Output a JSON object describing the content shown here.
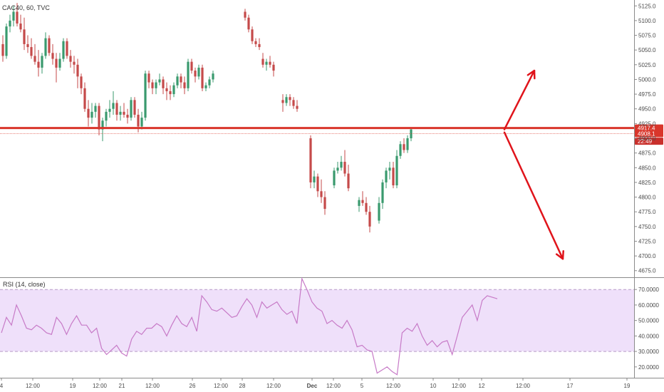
{
  "header": {
    "symbol_label": "CAC40, 60, TVC"
  },
  "rsi_panel": {
    "label": "RSI (14, close)"
  },
  "colors": {
    "up": "#3a9a6e",
    "down": "#c54a4a",
    "level_line": "#d9362b",
    "arrow": "#e0141b",
    "rsi_line": "#c77ac7",
    "rsi_band": "#efe0fa",
    "price_tag": "#d9362b",
    "time_tag": "#c9302c"
  },
  "chart_data": [
    {
      "type": "candlestick",
      "title": "CAC40, 60, TVC",
      "ylim": [
        4665,
        5135
      ],
      "y_ticks": [
        "4675.0",
        "4700.0",
        "4725.0",
        "4750.0",
        "4775.0",
        "4800.0",
        "4825.0",
        "4850.0",
        "4875.0",
        "4900.0",
        "4925.0",
        "4950.0",
        "4975.0",
        "5000.0",
        "5025.0",
        "5050.0",
        "5075.0",
        "5100.0",
        "5125.0"
      ],
      "x_ticks": [
        "4",
        "12:00",
        "19",
        "12:00",
        "21",
        "12:00",
        "26",
        "12:00",
        "28",
        "12:00",
        "Dec",
        "12:00",
        "5",
        "12:00",
        "10",
        "12:00",
        "12",
        "12:00",
        "17",
        "19"
      ],
      "x_tick_bold": [
        "Dec"
      ],
      "price_tags": [
        {
          "label": "4917.4",
          "value": 4917.4
        },
        {
          "label": "4908.1",
          "value": 4908.1
        },
        {
          "label": "22:49",
          "value": 4895
        }
      ],
      "horizontal_level": 4917.4,
      "reference_line": 4908.1,
      "projection_arrows": [
        {
          "direction": "up",
          "from": 4915,
          "to": 5015
        },
        {
          "direction": "down",
          "from": 4910,
          "to": 4695
        }
      ],
      "ohlc": [
        [
          5060,
          5075,
          5030,
          5040
        ],
        [
          5040,
          5095,
          5035,
          5090
        ],
        [
          5090,
          5110,
          5080,
          5100
        ],
        [
          5100,
          5125,
          5090,
          5115
        ],
        [
          5115,
          5130,
          5090,
          5095
        ],
        [
          5095,
          5110,
          5080,
          5085
        ],
        [
          5085,
          5105,
          5050,
          5060
        ],
        [
          5060,
          5075,
          5045,
          5055
        ],
        [
          5055,
          5070,
          5035,
          5040
        ],
        [
          5040,
          5060,
          5025,
          5030
        ],
        [
          5030,
          5050,
          5005,
          5020
        ],
        [
          5020,
          5045,
          5010,
          5040
        ],
        [
          5040,
          5080,
          5035,
          5070
        ],
        [
          5070,
          5075,
          5040,
          5045
        ],
        [
          5045,
          5060,
          5025,
          5035
        ],
        [
          5035,
          5045,
          4995,
          5020
        ],
        [
          5020,
          5045,
          5015,
          5035
        ],
        [
          5035,
          5070,
          5030,
          5065
        ],
        [
          5065,
          5070,
          5035,
          5040
        ],
        [
          5040,
          5050,
          5020,
          5030
        ],
        [
          5030,
          5040,
          5010,
          5025
        ],
        [
          5025,
          5035,
          4985,
          5005
        ],
        [
          5005,
          5010,
          4975,
          4985
        ],
        [
          4985,
          4995,
          4945,
          4950
        ],
        [
          4950,
          4965,
          4920,
          4935
        ],
        [
          4935,
          4960,
          4925,
          4945
        ],
        [
          4945,
          4960,
          4935,
          4955
        ],
        [
          4955,
          4960,
          4905,
          4915
        ],
        [
          4915,
          4935,
          4895,
          4930
        ],
        [
          4930,
          4950,
          4920,
          4945
        ],
        [
          4945,
          4965,
          4935,
          4950
        ],
        [
          4950,
          4980,
          4940,
          4960
        ],
        [
          4960,
          4965,
          4930,
          4940
        ],
        [
          4940,
          4955,
          4930,
          4945
        ],
        [
          4945,
          4960,
          4935,
          4940
        ],
        [
          4940,
          4950,
          4925,
          4935
        ],
        [
          4935,
          4970,
          4930,
          4965
        ],
        [
          4965,
          4970,
          4935,
          4940
        ],
        [
          4940,
          4950,
          4910,
          4920
        ],
        [
          4920,
          4945,
          4915,
          4935
        ],
        [
          4935,
          5015,
          4930,
          5010
        ],
        [
          5010,
          5015,
          4985,
          4995
        ],
        [
          4995,
          5000,
          4975,
          4985
        ],
        [
          4985,
          5000,
          4975,
          4995
        ],
        [
          4995,
          5010,
          4990,
          5000
        ],
        [
          5000,
          5005,
          4975,
          4985
        ],
        [
          4985,
          4995,
          4965,
          4980
        ],
        [
          4980,
          4990,
          4965,
          4975
        ],
        [
          4975,
          4995,
          4970,
          4990
        ],
        [
          4990,
          5010,
          4985,
          5005
        ],
        [
          5005,
          5010,
          4985,
          4995
        ],
        [
          4995,
          5005,
          4975,
          4985
        ],
        [
          4985,
          5035,
          4980,
          5030
        ],
        [
          5030,
          5035,
          5010,
          5015
        ],
        [
          5015,
          5020,
          4995,
          5005
        ],
        [
          5005,
          5025,
          5000,
          5020
        ],
        [
          5020,
          5025,
          4980,
          4985
        ],
        [
          4985,
          4995,
          4980,
          4990
        ],
        [
          4990,
          5005,
          4985,
          5000
        ],
        [
          5000,
          5015,
          4995,
          5010
        ],
        [
          5115,
          5120,
          5100,
          5105
        ],
        [
          5105,
          5110,
          5080,
          5085
        ],
        [
          5085,
          5090,
          5060,
          5065
        ],
        [
          5065,
          5070,
          5055,
          5060
        ],
        [
          5060,
          5070,
          5050,
          5055
        ],
        [
          5035,
          5045,
          5020,
          5025
        ],
        [
          5025,
          5035,
          5015,
          5030
        ],
        [
          5030,
          5040,
          5020,
          5025
        ],
        [
          5025,
          5030,
          5005,
          5015
        ],
        [
          4965,
          4975,
          4945,
          4960
        ],
        [
          4960,
          4975,
          4955,
          4970
        ],
        [
          4970,
          4975,
          4955,
          4965
        ],
        [
          4965,
          4970,
          4950,
          4955
        ],
        [
          4955,
          4965,
          4945,
          4950
        ],
        [
          4900,
          4905,
          4815,
          4825
        ],
        [
          4825,
          4845,
          4815,
          4835
        ],
        [
          4835,
          4840,
          4800,
          4810
        ],
        [
          4810,
          4830,
          4790,
          4800
        ],
        [
          4800,
          4810,
          4770,
          4780
        ],
        [
          4820,
          4850,
          4815,
          4845
        ],
        [
          4845,
          4860,
          4840,
          4850
        ],
        [
          4850,
          4870,
          4845,
          4860
        ],
        [
          4860,
          4880,
          4835,
          4840
        ],
        [
          4840,
          4855,
          4810,
          4815
        ],
        [
          4785,
          4800,
          4775,
          4795
        ],
        [
          4795,
          4810,
          4785,
          4790
        ],
        [
          4790,
          4800,
          4770,
          4775
        ],
        [
          4775,
          4785,
          4740,
          4750
        ],
        [
          4760,
          4800,
          4755,
          4790
        ],
        [
          4790,
          4830,
          4780,
          4825
        ],
        [
          4825,
          4850,
          4815,
          4845
        ],
        [
          4845,
          4860,
          4830,
          4850
        ],
        [
          4850,
          4860,
          4815,
          4820
        ],
        [
          4820,
          4880,
          4815,
          4870
        ],
        [
          4870,
          4895,
          4865,
          4890
        ],
        [
          4890,
          4900,
          4875,
          4880
        ],
        [
          4880,
          4905,
          4875,
          4900
        ],
        [
          4900,
          4918,
          4895,
          4915
        ]
      ]
    },
    {
      "type": "line",
      "title": "RSI (14, close)",
      "ylim": [
        13,
        77
      ],
      "y_ticks": [
        "20.0000",
        "30.0000",
        "40.0000",
        "50.0000",
        "60.0000",
        "70.0000"
      ],
      "band": [
        30,
        70
      ],
      "series": [
        {
          "values": [
            42,
            52,
            47,
            60,
            53,
            45,
            44,
            47,
            45,
            42,
            41,
            52,
            48,
            41,
            48,
            53,
            47,
            47,
            42,
            45,
            32,
            28,
            31,
            34,
            29,
            27,
            38,
            43,
            41,
            45,
            45,
            48,
            46,
            40,
            47,
            53,
            48,
            46,
            52,
            43,
            66,
            62,
            57,
            56,
            58,
            55,
            52,
            53,
            59,
            64,
            60,
            52,
            62,
            58,
            60,
            62,
            57,
            54,
            56,
            48,
            77,
            70,
            62,
            58,
            56,
            48,
            50,
            47,
            45,
            50,
            44,
            33,
            34,
            31,
            30,
            16,
            18,
            20,
            17,
            15,
            42,
            45,
            43,
            48,
            40,
            34,
            37,
            33,
            36,
            37,
            28,
            40,
            52,
            56,
            60,
            50,
            63,
            66,
            65,
            64
          ]
        }
      ]
    }
  ]
}
